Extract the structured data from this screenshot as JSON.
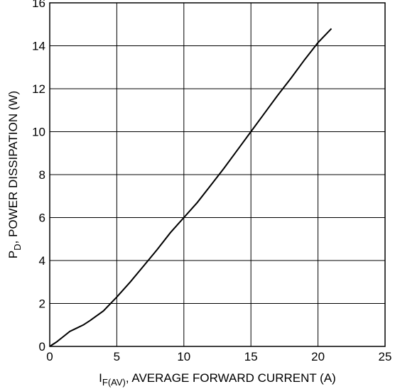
{
  "chart_data": {
    "type": "line",
    "title": "",
    "xlabel": {
      "main": "I",
      "subscript": "F(AV)",
      "rest": ", AVERAGE FORWARD CURRENT (A)"
    },
    "ylabel": {
      "main": "P",
      "subscript": "D",
      "rest": ",   POWER DISSIPATION (W)"
    },
    "xlim": [
      0,
      25
    ],
    "ylim": [
      0,
      16
    ],
    "xticks": [
      0,
      5,
      10,
      15,
      20,
      25
    ],
    "xtick_labels": [
      "0",
      "5",
      "10",
      "15",
      "20",
      "25"
    ],
    "yticks": [
      0,
      2,
      4,
      6,
      8,
      10,
      12,
      14,
      16
    ],
    "ytick_labels": [
      "0",
      "2",
      "4",
      "6",
      "8",
      "10",
      "12",
      "14",
      "16"
    ],
    "grid": true,
    "series": [
      {
        "x": [
          0,
          0.5,
          1,
          1.5,
          2,
          2.5,
          3,
          4,
          5,
          6,
          7,
          8,
          9,
          10,
          11,
          12,
          13,
          14,
          15,
          16,
          17,
          18,
          19,
          20,
          21
        ],
        "y": [
          0,
          0.2,
          0.45,
          0.7,
          0.85,
          1.0,
          1.2,
          1.65,
          2.3,
          3.0,
          3.75,
          4.5,
          5.3,
          6.0,
          6.7,
          7.5,
          8.3,
          9.15,
          10.0,
          10.85,
          11.7,
          12.5,
          13.35,
          14.15,
          14.8
        ]
      }
    ]
  }
}
